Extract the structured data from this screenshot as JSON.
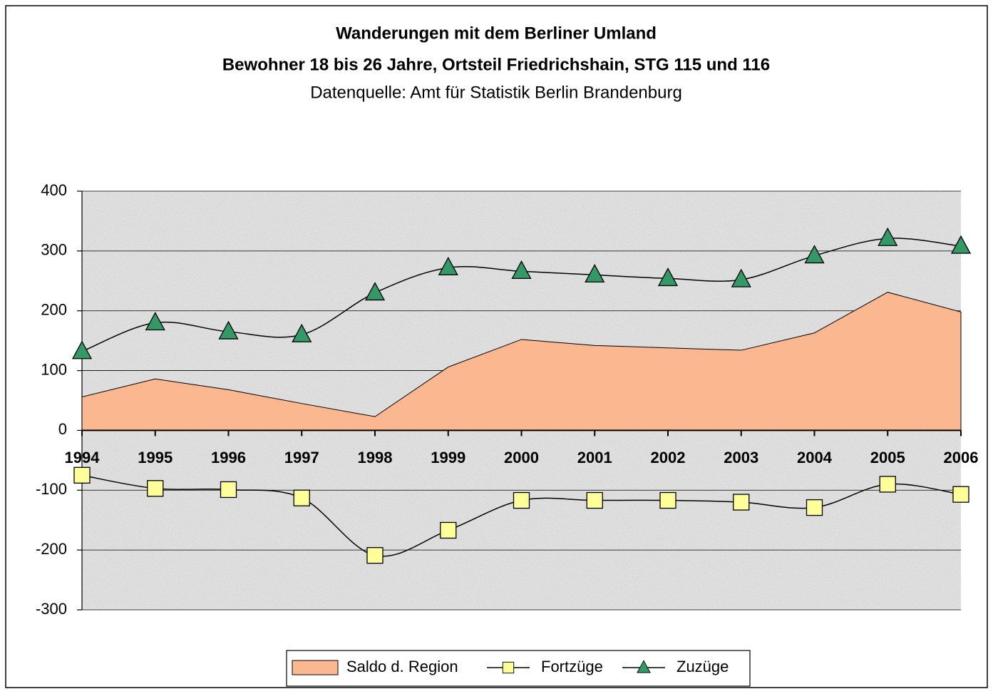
{
  "chart_data": {
    "type": "line",
    "title": "Wanderungen mit dem Berliner Umland",
    "subtitle": "Bewohner 18 bis 26 Jahre, Ortsteil Friedrichshain, STG 115 und 116",
    "source": "Datenquelle: Amt für Statistik Berlin Brandenburg",
    "categories": [
      "1994",
      "1995",
      "1996",
      "1997",
      "1998",
      "1999",
      "2000",
      "2001",
      "2002",
      "2003",
      "2004",
      "2005",
      "2006"
    ],
    "series": [
      {
        "name": "Saldo d. Region",
        "type": "area",
        "color": "#fbb78f",
        "values": [
          56,
          86,
          68,
          45,
          23,
          106,
          152,
          142,
          138,
          134,
          163,
          231,
          198
        ]
      },
      {
        "name": "Fortzüge",
        "type": "line",
        "marker": "square",
        "color": "#ffff99",
        "smooth": true,
        "values": [
          -75,
          -97,
          -99,
          -113,
          -209,
          -167,
          -117,
          -117,
          -117,
          -120,
          -129,
          -90,
          -107
        ]
      },
      {
        "name": "Zuzüge",
        "type": "line",
        "marker": "triangle",
        "color": "#339966",
        "smooth": true,
        "values": [
          132,
          180,
          165,
          160,
          230,
          272,
          266,
          260,
          254,
          252,
          292,
          321,
          308
        ]
      }
    ],
    "ylim": [
      -300,
      400
    ],
    "yticks": [
      -300,
      -200,
      -100,
      0,
      100,
      200,
      300,
      400
    ],
    "grid": true,
    "legend": "bottom"
  }
}
